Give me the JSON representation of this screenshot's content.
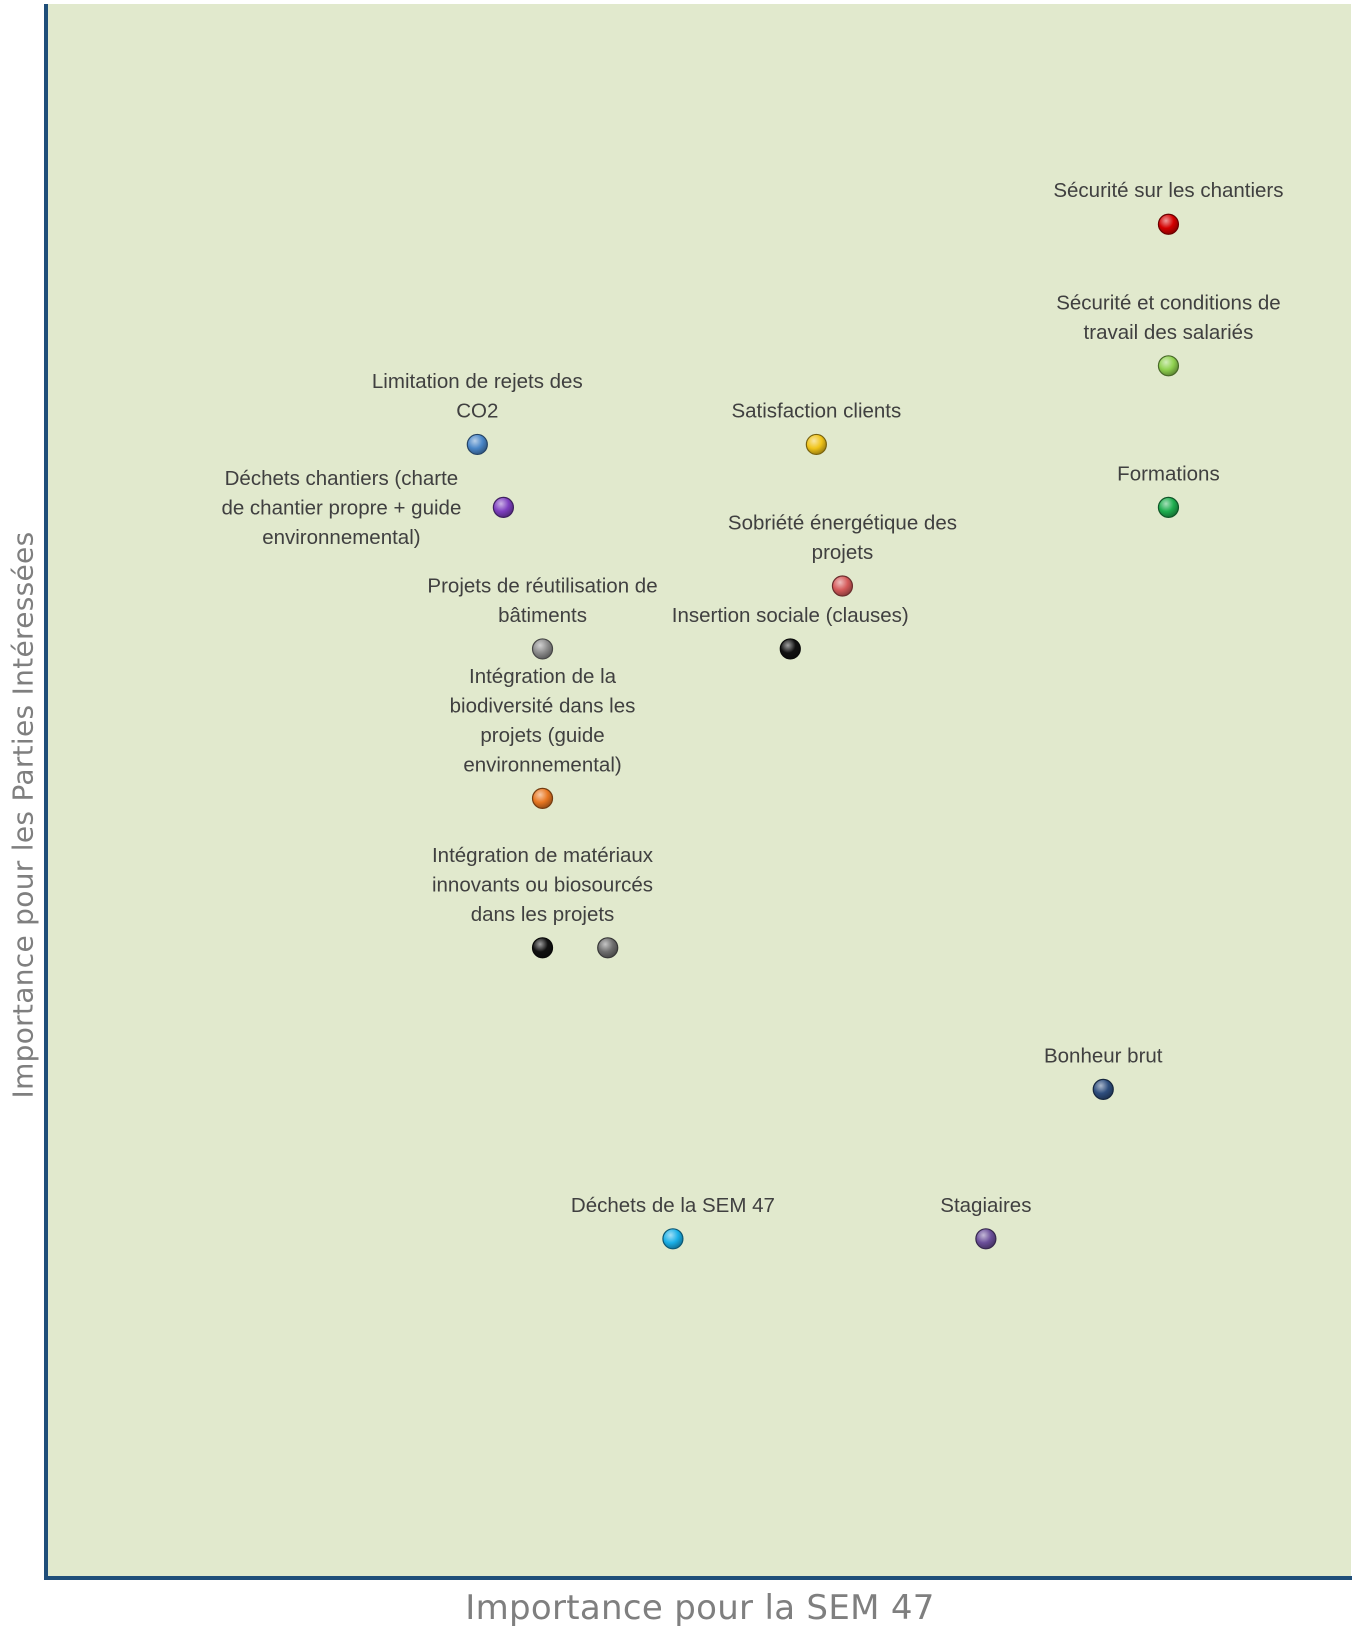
{
  "chart_data": {
    "type": "scatter",
    "title": "",
    "xlabel": "Importance pour la SEM 47",
    "ylabel": "Importance pour les Parties Intéressées",
    "xlim": [
      0,
      10
    ],
    "ylim": [
      0,
      10
    ],
    "grid": false,
    "legend": "none",
    "points": [
      {
        "label": "Sécurité sur les chantiers",
        "x": 8.6,
        "y": 8.6,
        "color": "#d40000"
      },
      {
        "label": "Sécurité et conditions de\ntravail des salariés",
        "x": 8.6,
        "y": 7.7,
        "color": "#8fd14f"
      },
      {
        "label": "Formations",
        "x": 8.6,
        "y": 6.8,
        "color": "#1fae4f"
      },
      {
        "label": "Limitation de rejets des\nCO2",
        "x": 3.3,
        "y": 7.2,
        "color": "#4a86c8"
      },
      {
        "label": "Satisfaction clients",
        "x": 5.9,
        "y": 7.2,
        "color": "#f0c419"
      },
      {
        "label": "Déchets chantiers (charte\nde chantier propre + guide\nenvironnemental)",
        "x": 3.5,
        "y": 6.8,
        "color": "#7e3fc0"
      },
      {
        "label": "Sobriété énergétique des\nprojets",
        "x": 6.1,
        "y": 6.3,
        "color": "#d55a5a"
      },
      {
        "label": "Projets de réutilisation de\nbâtiments",
        "x": 3.8,
        "y": 5.9,
        "color": "#8c8c8c"
      },
      {
        "label": "Insertion sociale (clauses)",
        "x": 5.7,
        "y": 5.9,
        "color": "#111111"
      },
      {
        "label": "Intégration de la\nbiodiversité dans les\nprojets (guide\nenvironnemental)",
        "x": 3.8,
        "y": 4.95,
        "color": "#e87722"
      },
      {
        "label": "Intégration de matériaux\ninnovants ou biosourcés\ndans les projets",
        "x": 3.8,
        "y": 4.0,
        "color": "#111111"
      },
      {
        "label": "",
        "x": 4.3,
        "y": 4.0,
        "color": "#6e6e6e"
      },
      {
        "label": "Bonheur brut",
        "x": 8.1,
        "y": 3.1,
        "color": "#2e4e7e"
      },
      {
        "label": "Déchets de la SEM 47",
        "x": 4.8,
        "y": 2.15,
        "color": "#1ab0e8"
      },
      {
        "label": "Stagiaires",
        "x": 7.2,
        "y": 2.15,
        "color": "#6b4f9a"
      }
    ]
  }
}
